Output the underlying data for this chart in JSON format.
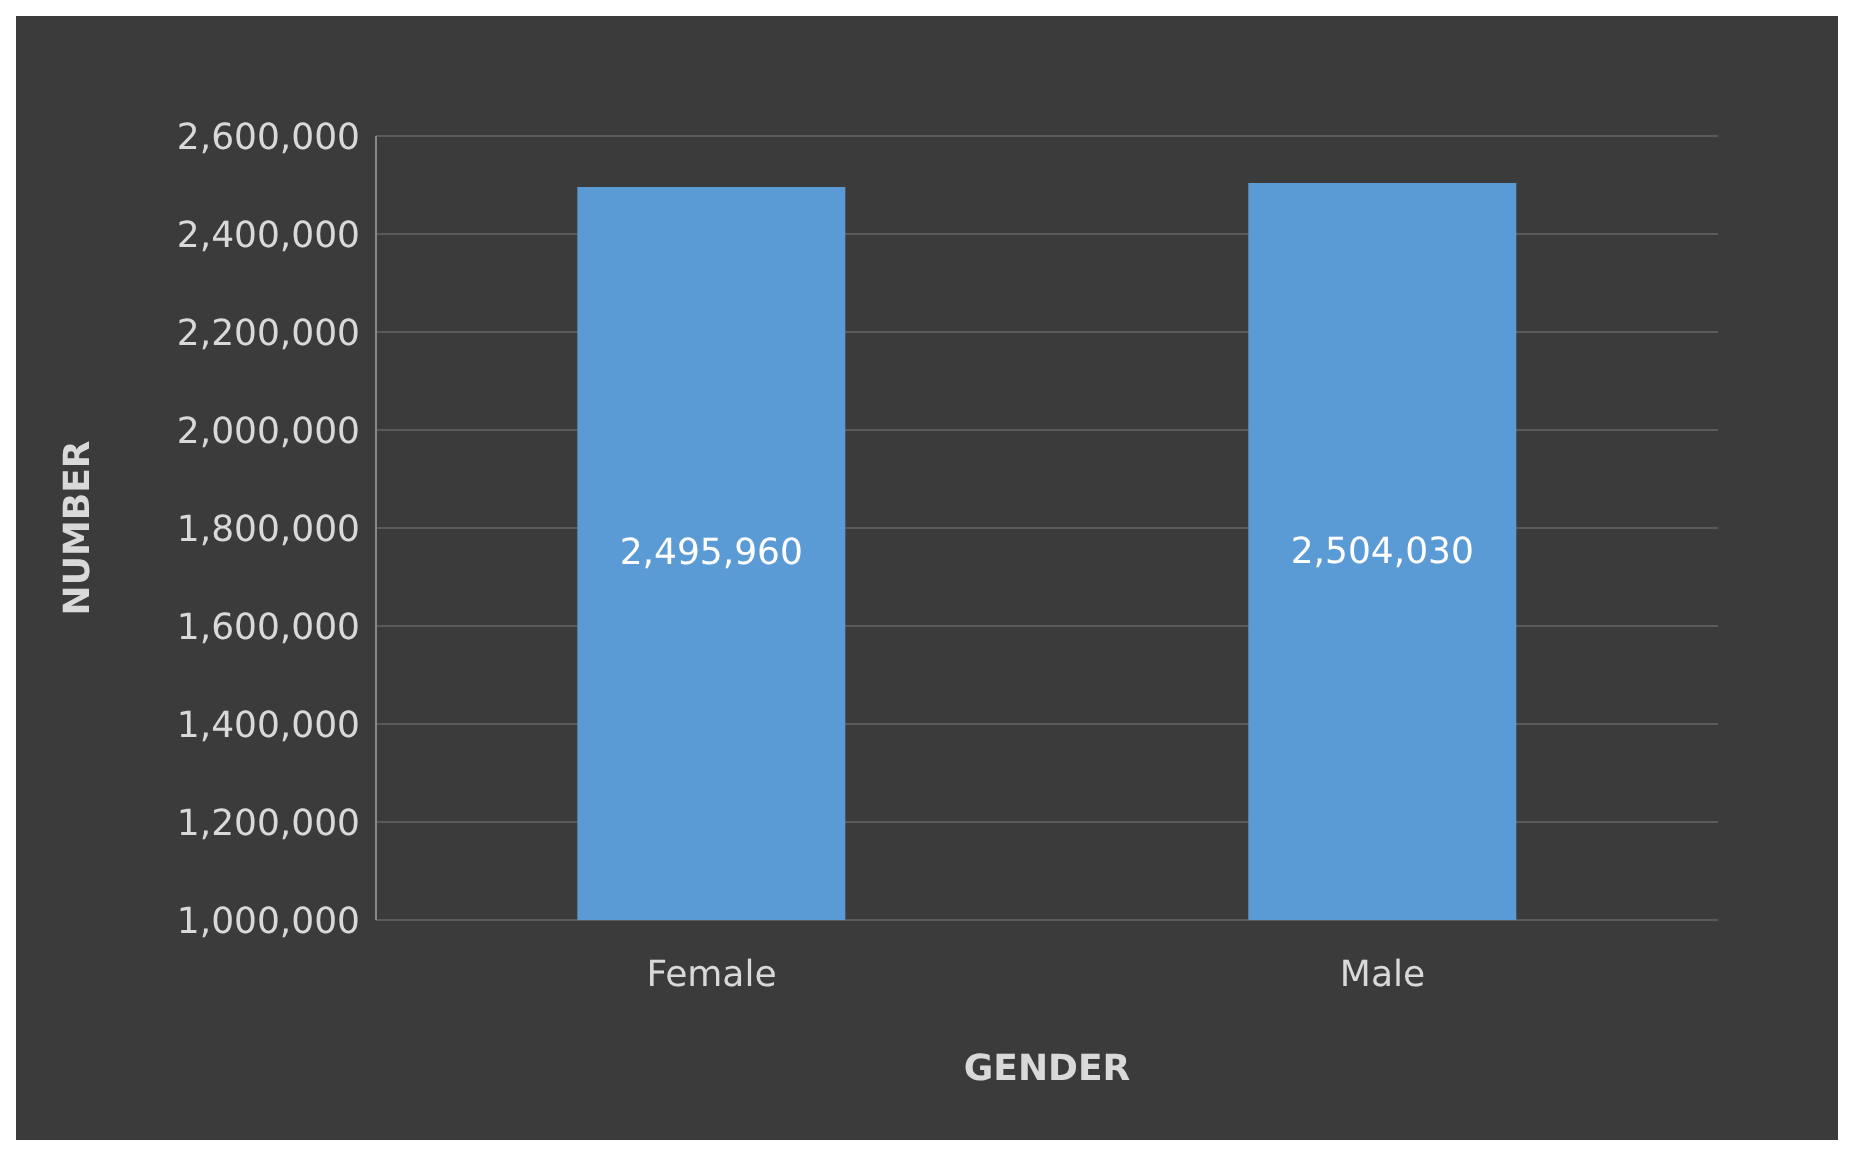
{
  "chart_data": {
    "type": "bar",
    "xlabel": "GENDER",
    "ylabel": "NUMBER",
    "categories": [
      "Female",
      "Male"
    ],
    "values": [
      2495960,
      2504030
    ],
    "color": "#5b9bd5",
    "value_labels": [
      "2,495,960",
      "2,504,030"
    ],
    "ylim": [
      1000000,
      2600000
    ],
    "yticks": [
      {
        "value": 1000000,
        "label": "1,000,000"
      },
      {
        "value": 1200000,
        "label": "1,200,000"
      },
      {
        "value": 1400000,
        "label": "1,400,000"
      },
      {
        "value": 1600000,
        "label": "1,600,000"
      },
      {
        "value": 1800000,
        "label": "1,800,000"
      },
      {
        "value": 2000000,
        "label": "2,000,000"
      },
      {
        "value": 2200000,
        "label": "2,200,000"
      },
      {
        "value": 2400000,
        "label": "2,400,000"
      },
      {
        "value": 2600000,
        "label": "2,600,000"
      }
    ],
    "grid": "y"
  }
}
